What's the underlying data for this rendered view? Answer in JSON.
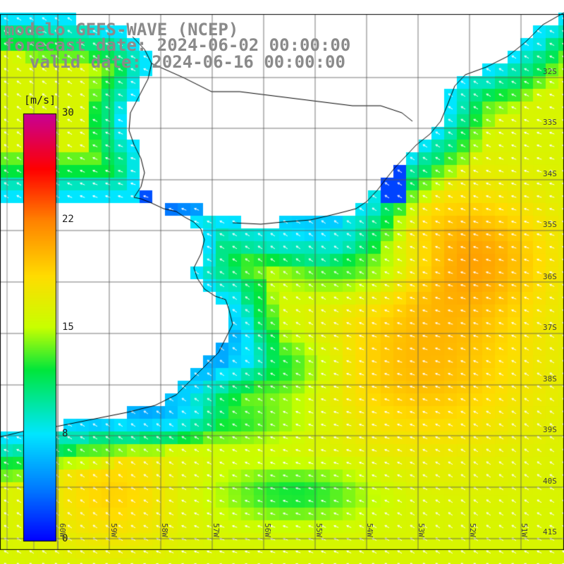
{
  "title": {
    "line1": "modelo GEFS-WAVE (NCEP)",
    "line2": "forecast date: 2024-06-02 00:00:00",
    "line3": "valid date: 2024-06-16 00:00:00"
  },
  "colorbar": {
    "unit": "[m/s]",
    "min": 0,
    "max": 30,
    "ticks": [
      "0",
      "8",
      "15",
      "22",
      "30"
    ],
    "tick_values": [
      0,
      8,
      15,
      22,
      30
    ]
  },
  "lat_labels": [
    "32S",
    "33S",
    "34S",
    "35S",
    "36S",
    "37S",
    "38S",
    "39S",
    "40S",
    "41S"
  ],
  "lon_labels": [
    "60W",
    "59W",
    "58W",
    "57W",
    "56W",
    "55W",
    "54W",
    "53W",
    "52W",
    "51W"
  ],
  "field": {
    "description_colors": {
      "low": "#0000ff",
      "mid": "#00ff00",
      "high": "#ff0000"
    },
    "arrow_color": "#ffffff",
    "grid_color": "#555555"
  }
}
